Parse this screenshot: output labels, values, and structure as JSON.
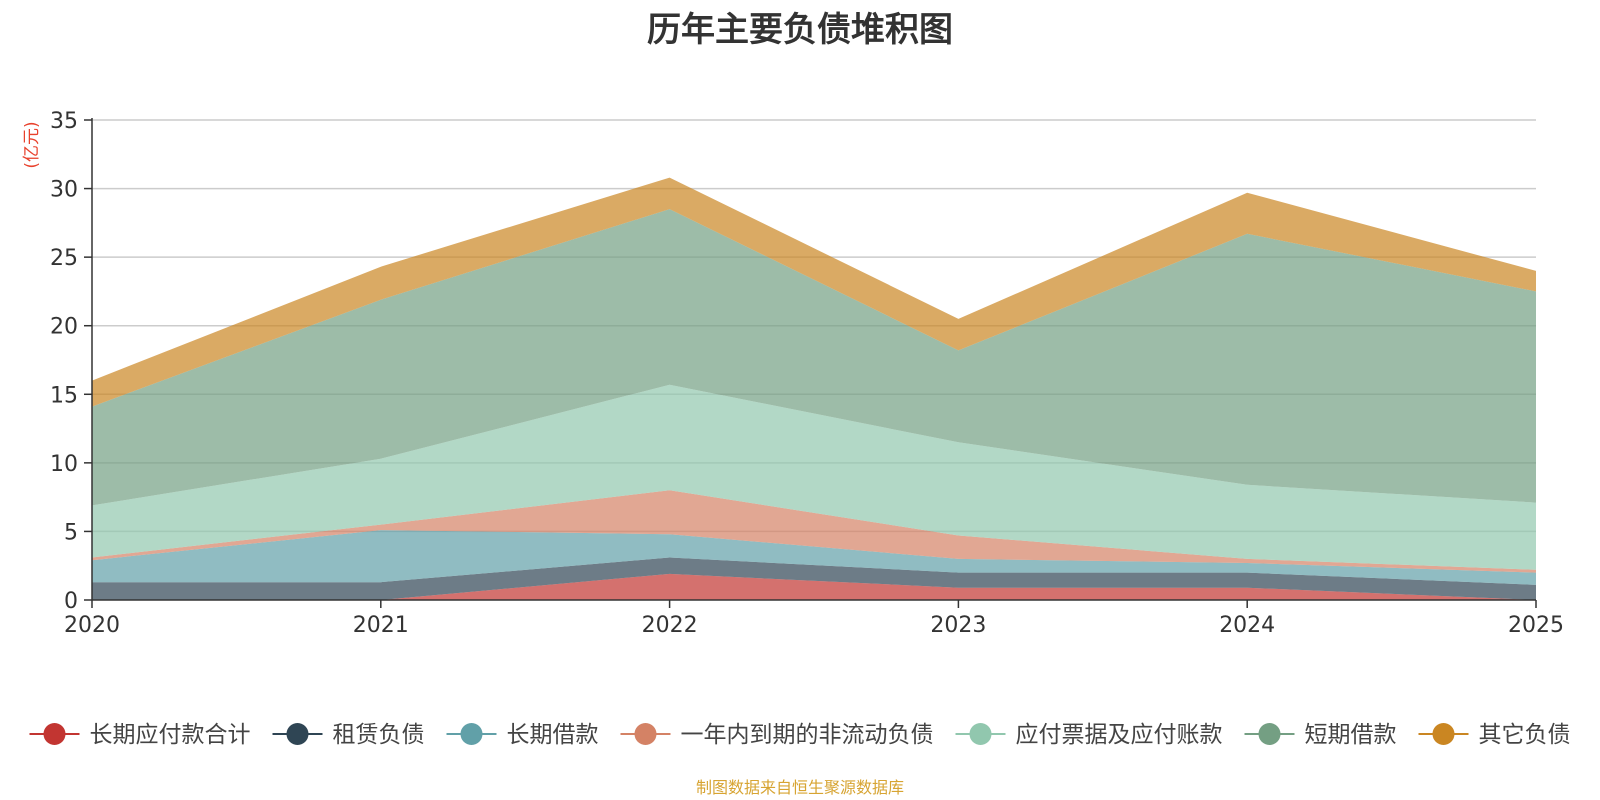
{
  "chart_data": {
    "type": "area",
    "stacked": true,
    "title": "历年主要负债堆积图",
    "ylabel": "(亿元)",
    "xlabel": "",
    "x": [
      "2020",
      "2021",
      "2022",
      "2023",
      "2024",
      "2025"
    ],
    "ylim": [
      0,
      35
    ],
    "yticks": [
      0,
      5,
      10,
      15,
      20,
      25,
      30,
      35
    ],
    "grid": true,
    "legend_position": "bottom",
    "series": [
      {
        "name": "长期应付款合计",
        "color": "#c23531",
        "values": [
          0,
          0,
          1.9,
          0.9,
          0.9,
          0
        ]
      },
      {
        "name": "租赁负债",
        "color": "#2f4554",
        "values": [
          1.3,
          1.3,
          1.2,
          1.1,
          1.1,
          1.1
        ]
      },
      {
        "name": "长期借款",
        "color": "#61a0a8",
        "values": [
          1.6,
          3.8,
          1.7,
          1.0,
          0.7,
          0.9
        ]
      },
      {
        "name": "一年内到期的非流动负债",
        "color": "#d48265",
        "values": [
          0.2,
          0.4,
          3.2,
          1.7,
          0.3,
          0.2
        ]
      },
      {
        "name": "应付票据及应付账款",
        "color": "#91c7ae",
        "values": [
          3.8,
          4.8,
          7.7,
          6.8,
          5.4,
          4.9
        ]
      },
      {
        "name": "短期借款",
        "color": "#749f83",
        "values": [
          7.2,
          11.6,
          12.8,
          6.7,
          18.3,
          15.4
        ]
      },
      {
        "name": "其它负债",
        "color": "#ca8622",
        "values": [
          1.9,
          2.4,
          2.3,
          2.3,
          3.0,
          1.5
        ]
      }
    ]
  },
  "source_note": "制图数据来自恒生聚源数据库"
}
